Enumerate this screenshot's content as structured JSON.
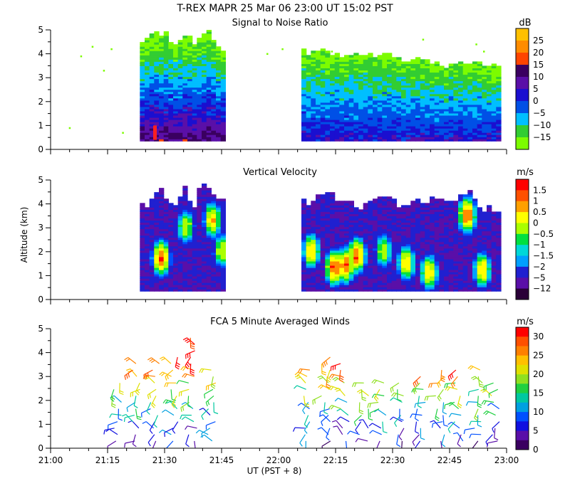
{
  "figure": {
    "title": "T-REX   MAPR 25 Mar 06   23:00 UT   15:02   PST",
    "xlabel": "UT  (PST + 8)",
    "ylabel": "Altitude (km)",
    "xticks": [
      "21:00",
      "21:15",
      "21:30",
      "21:45",
      "22:00",
      "22:15",
      "22:30",
      "22:45",
      "23:00"
    ]
  },
  "colors": {
    "snr": [
      "#7cfc00",
      "#32cd32",
      "#00bfff",
      "#0050e6",
      "#1a0fd0",
      "#5a0fa8",
      "#3a0060",
      "#ff4500",
      "#ff8c00",
      "#ffc000"
    ],
    "vel": [
      "#2a0038",
      "#5a0fa8",
      "#2020d0",
      "#0050ff",
      "#00a0ff",
      "#00d8d8",
      "#00e040",
      "#aaff00",
      "#ffff00",
      "#ffc000",
      "#ff8c00",
      "#ff5000",
      "#ff0000"
    ],
    "wind": [
      "#3a0060",
      "#5a0fa8",
      "#1010e0",
      "#0050ff",
      "#00a0e0",
      "#00c8a0",
      "#20d040",
      "#90e020",
      "#e0e000",
      "#ffc000",
      "#ff8000",
      "#ff5000",
      "#ff0000"
    ]
  },
  "chart_data": [
    {
      "type": "heatmap",
      "title": "Signal to Noise Ratio",
      "xlabel": "UT  (PST + 8)",
      "ylabel": "Altitude (km)",
      "xlim": [
        0,
        120
      ],
      "ylim": [
        0,
        5
      ],
      "yticks": [
        0,
        1,
        2,
        3,
        4,
        5
      ],
      "units": "dB",
      "legend_levels": [
        "25",
        "20",
        "15",
        "10",
        "5",
        "0",
        "−5",
        "−10",
        "−15"
      ],
      "segments": [
        {
          "x_start": 23.5,
          "x_end": 45.5,
          "top_km": [
            4.3,
            4.5,
            4.7,
            5.0,
            4.8,
            4.9,
            4.6,
            4.4,
            4.5,
            4.8,
            4.6,
            4.4,
            4.6,
            4.9,
            5.0,
            4.6,
            4.3,
            4.0
          ],
          "snr_db_profile": [
            12,
            10,
            8,
            6,
            4,
            2,
            0,
            -5,
            -10,
            -15
          ]
        },
        {
          "x_start": 66,
          "x_end": 118,
          "top_km": [
            4.1,
            4.0,
            4.2,
            4.0,
            3.9,
            4.0,
            4.0,
            3.9,
            4.0,
            3.8,
            3.7,
            3.8,
            3.7,
            3.6,
            3.5,
            3.6,
            3.5,
            3.6,
            3.4,
            3.5
          ],
          "snr_db_profile": [
            6,
            4,
            2,
            0,
            -5,
            -8,
            -10,
            -15
          ]
        }
      ],
      "isolated_echoes": [
        [
          5,
          0.9
        ],
        [
          8,
          3.9
        ],
        [
          11,
          4.3
        ],
        [
          14,
          3.3
        ],
        [
          16,
          4.2
        ],
        [
          19,
          0.7
        ],
        [
          45,
          3.8
        ],
        [
          57,
          4.0
        ],
        [
          61,
          4.2
        ],
        [
          74,
          4.1
        ],
        [
          98,
          4.6
        ],
        [
          112,
          4.4
        ],
        [
          114,
          4.1
        ]
      ]
    },
    {
      "type": "heatmap",
      "title": "Vertical Velocity",
      "xlabel": "UT  (PST + 8)",
      "ylabel": "Altitude (km)",
      "xlim": [
        0,
        120
      ],
      "ylim": [
        0,
        5
      ],
      "yticks": [
        0,
        1,
        2,
        3,
        4,
        5
      ],
      "units": "m/s",
      "legend_levels": [
        "1.5",
        "1",
        "0.5",
        "0",
        "−0.5",
        "−1",
        "−1.5",
        "−2",
        "−5",
        "−12"
      ],
      "segments": [
        {
          "x_start": 23.5,
          "x_end": 45.5,
          "bottom_km": 0.35,
          "top_km": [
            3.9,
            3.9,
            4.0,
            4.3,
            4.5,
            4.1,
            3.8,
            4.0,
            4.6,
            4.1,
            3.9,
            4.9,
            4.8,
            4.4,
            4.2,
            4.1
          ]
        },
        {
          "x_start": 66,
          "x_end": 118,
          "bottom_km": 0.35,
          "top_km": [
            4.0,
            4.1,
            4.3,
            4.5,
            4.0,
            4.2,
            3.6,
            3.9,
            4.1,
            4.2,
            4.0,
            3.8,
            4.1,
            4.0,
            4.2,
            4.1,
            3.9,
            4.3,
            4.4,
            3.7,
            3.8,
            3.6
          ]
        }
      ],
      "cores": [
        {
          "x": 28.5,
          "alt_km": 1.7,
          "w_ms": 1.5
        },
        {
          "x": 35,
          "alt_km": 3.0,
          "w_ms": 0.5
        },
        {
          "x": 42,
          "alt_km": 3.3,
          "w_ms": 1.0
        },
        {
          "x": 44.5,
          "alt_km": 2.0,
          "w_ms": 0.5
        },
        {
          "x": 68,
          "alt_km": 2.0,
          "w_ms": 1.0
        },
        {
          "x": 74,
          "alt_km": 1.3,
          "w_ms": 1.5
        },
        {
          "x": 77,
          "alt_km": 1.4,
          "w_ms": 1.5
        },
        {
          "x": 80,
          "alt_km": 1.8,
          "w_ms": 1.5
        },
        {
          "x": 87,
          "alt_km": 2.0,
          "w_ms": 0.5
        },
        {
          "x": 93,
          "alt_km": 1.5,
          "w_ms": 1.0
        },
        {
          "x": 99,
          "alt_km": 1.1,
          "w_ms": 1.0
        },
        {
          "x": 109,
          "alt_km": 3.5,
          "w_ms": 1.5
        },
        {
          "x": 113,
          "alt_km": 1.2,
          "w_ms": 1.0
        }
      ]
    },
    {
      "type": "scatter",
      "title": "FCA 5 Minute Averaged Winds",
      "xlabel": "UT  (PST + 8)",
      "ylabel": "Altitude (km)",
      "xlim": [
        0,
        120
      ],
      "ylim": [
        0,
        5
      ],
      "yticks": [
        0,
        1,
        2,
        3,
        4,
        5
      ],
      "units": "m/s",
      "legend_levels": [
        "30",
        "25",
        "20",
        "15",
        "10",
        "5",
        "0"
      ],
      "columns_minutes": [
        17.5,
        22.5,
        27.5,
        32.5,
        37.5,
        42.5,
        67.5,
        72.5,
        77.5,
        82.5,
        87.5,
        92.5,
        97.5,
        102.5,
        107.5,
        112.5,
        117
      ],
      "column_tops_km": [
        2.9,
        3.7,
        3.8,
        3.9,
        4.7,
        3.4,
        3.3,
        3.9,
        3.6,
        3.0,
        3.0,
        2.9,
        3.2,
        3.4,
        3.3,
        3.5,
        3.0
      ],
      "speed_profile_ms": [
        [
          0,
          4
        ],
        [
          1,
          8
        ],
        [
          2,
          14
        ],
        [
          3,
          22
        ],
        [
          3.5,
          26
        ],
        [
          4,
          30
        ],
        [
          5,
          30
        ]
      ],
      "direction_deg": "approximately westerly, backing with height"
    }
  ]
}
